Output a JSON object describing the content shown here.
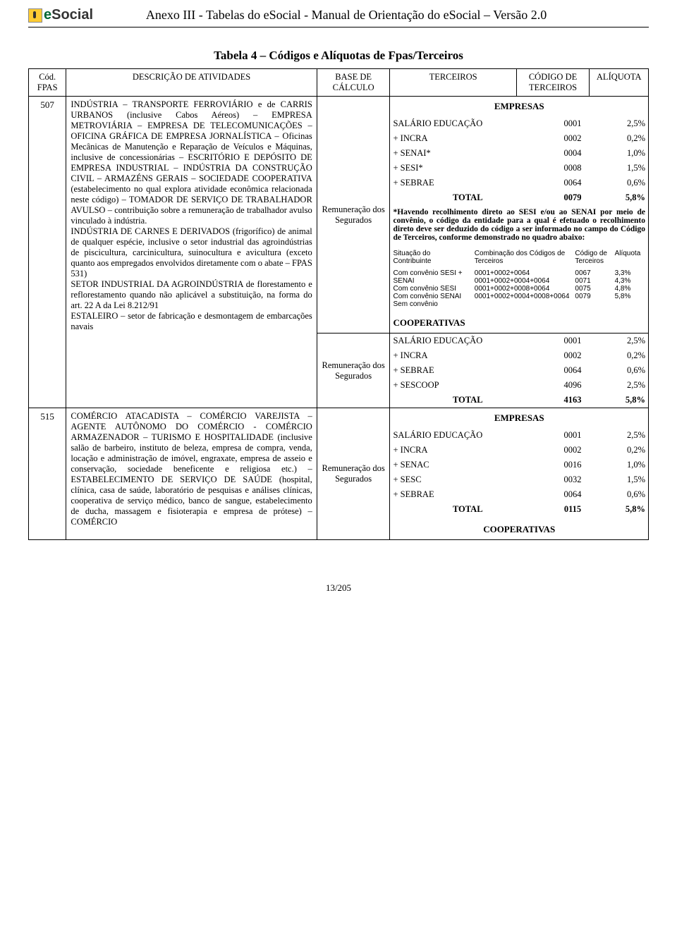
{
  "header": {
    "logo_text_e": "e",
    "logo_text_social": "Social",
    "doc_title": "Anexo III - Tabelas do eSocial - Manual de Orientação do eSocial – Versão 2.0"
  },
  "table_title": "Tabela 4 – Códigos e Alíquotas de Fpas/Terceiros",
  "columns": {
    "cod": "Cód. FPAS",
    "desc": "DESCRIÇÃO DE ATIVIDADES",
    "base": "BASE DE CÁLCULO",
    "terc": "TERCEIROS",
    "codterc": "CÓDIGO DE TERCEIROS",
    "aliq": "ALÍQUOTA"
  },
  "row507": {
    "cod": "507",
    "desc": "INDÚSTRIA – TRANSPORTE FERROVIÁRIO e de CARRIS URBANOS (inclusive Cabos Aéreos) – EMPRESA METROVIÁRIA – EMPRESA DE TELECOMUNICAÇÕES – OFICINA GRÁFICA DE EMPRESA JORNALÍSTICA – Oficinas Mecânicas de Manutenção e Reparação de Veículos e Máquinas, inclusive de concessionárias – ESCRITÓRIO E DEPÓSITO DE EMPRESA INDUSTRIAL – INDÚSTRIA DA CONSTRUÇÃO CIVIL – ARMAZÉNS GERAIS – SOCIEDADE COOPERATIVA (estabelecimento no qual explora atividade econômica relacionada neste código) – TOMADOR DE SERVIÇO DE TRABALHADOR AVULSO – contribuição sobre a remuneração de trabalhador avulso vinculado à indústria.",
    "desc2": "INDÚSTRIA DE CARNES E DERIVADOS (frigorífico) de animal de qualquer espécie, inclusive o setor industrial das agroindústrias de piscicultura, carcinicultura, suinocultura e avicultura (exceto quanto aos empregados envolvidos diretamente com o abate – FPAS 531)",
    "desc3": "SETOR INDUSTRIAL DA AGROINDÚSTRIA de florestamento e reflorestamento quando não aplicável a substituição, na forma do art. 22 A da Lei 8.212/91",
    "desc4": "ESTALEIRO – setor de fabricação e desmontagem de embarcações navais",
    "base1": "Remuneração dos Segurados",
    "base2": "Remuneração dos Segurados",
    "empresas_label": "EMPRESAS",
    "empresas_rows": [
      {
        "label": "SALÁRIO EDUCAÇÃO",
        "cod": "0001",
        "aliq": "2,5%"
      },
      {
        "label": "+ INCRA",
        "cod": "0002",
        "aliq": "0,2%"
      },
      {
        "label": "+ SENAI*",
        "cod": "0004",
        "aliq": "1,0%"
      },
      {
        "label": "+ SESI*",
        "cod": "0008",
        "aliq": "1,5%"
      },
      {
        "label": "+ SEBRAE",
        "cod": "0064",
        "aliq": "0,6%"
      },
      {
        "label": "TOTAL",
        "cod": "0079",
        "aliq": "5,8%"
      }
    ],
    "note": "*Havendo recolhimento direto ao SESI e/ou ao SENAI por meio de convênio, o código da entidade para a qual é efetuado o recolhimento direto deve ser deduzido do código a ser informado no campo do Código de Terceiros, conforme demonstrado no quadro abaixo:",
    "situ_headers": {
      "h1": "Situação do Contribuinte",
      "h2": "Combinação dos Códigos de Terceiros",
      "h3": "Código de Terceiros",
      "h4": "Alíquota"
    },
    "situ_rows": [
      {
        "c1": "Com convênio SESI + SENAI",
        "c2": "0001+0002+0064",
        "c3": "0067",
        "c4": "3,3%"
      },
      {
        "c1": "Com convênio SESI",
        "c2": "0001+0002+0004+0064",
        "c3": "0071",
        "c4": "4,3%"
      },
      {
        "c1": "Com convênio SENAI",
        "c2": "0001+0002+0008+0064",
        "c3": "0075",
        "c4": "4,8%"
      },
      {
        "c1": "Sem convênio",
        "c2": "0001+0002+0004+0008+0064",
        "c3": "0079",
        "c4": "5,8%"
      }
    ],
    "coop_label": "COOPERATIVAS",
    "coop_rows": [
      {
        "label": "SALÁRIO EDUCAÇÃO",
        "cod": "0001",
        "aliq": "2,5%"
      },
      {
        "label": "+ INCRA",
        "cod": "0002",
        "aliq": "0,2%"
      },
      {
        "label": "+ SEBRAE",
        "cod": "0064",
        "aliq": "0,6%"
      },
      {
        "label": "+ SESCOOP",
        "cod": "4096",
        "aliq": "2,5%"
      },
      {
        "label": "TOTAL",
        "cod": "4163",
        "aliq": "5,8%"
      }
    ]
  },
  "row515": {
    "cod": "515",
    "desc": "COMÉRCIO ATACADISTA – COMÉRCIO VAREJISTA – AGENTE AUTÔNOMO DO COMÉRCIO - COMÉRCIO ARMAZENADOR – TURISMO E HOSPITALIDADE (inclusive salão de barbeiro, instituto de beleza, empresa de compra, venda, locação e administração de imóvel, engraxate, empresa de asseio e conservação, sociedade beneficente e religiosa etc.) – ESTABELECIMENTO DE SERVIÇO DE SAÚDE (hospital, clínica, casa de saúde, laboratório de pesquisas e análises clínicas, cooperativa de serviço médico, banco de sangue, estabelecimento de ducha, massagem e fisioterapia e empresa de prótese) – COMÉRCIO",
    "base": "Remuneração dos Segurados",
    "empresas_label": "EMPRESAS",
    "empresas_rows": [
      {
        "label": "SALÁRIO EDUCAÇÃO",
        "cod": "0001",
        "aliq": "2,5%"
      },
      {
        "label": "+ INCRA",
        "cod": "0002",
        "aliq": "0,2%"
      },
      {
        "label": "+ SENAC",
        "cod": "0016",
        "aliq": "1,0%"
      },
      {
        "label": "+ SESC",
        "cod": "0032",
        "aliq": "1,5%"
      },
      {
        "label": "+ SEBRAE",
        "cod": "0064",
        "aliq": "0,6%"
      },
      {
        "label": "TOTAL",
        "cod": "0115",
        "aliq": "5,8%"
      }
    ],
    "coop_label": "COOPERATIVAS"
  },
  "footer": "13/205"
}
